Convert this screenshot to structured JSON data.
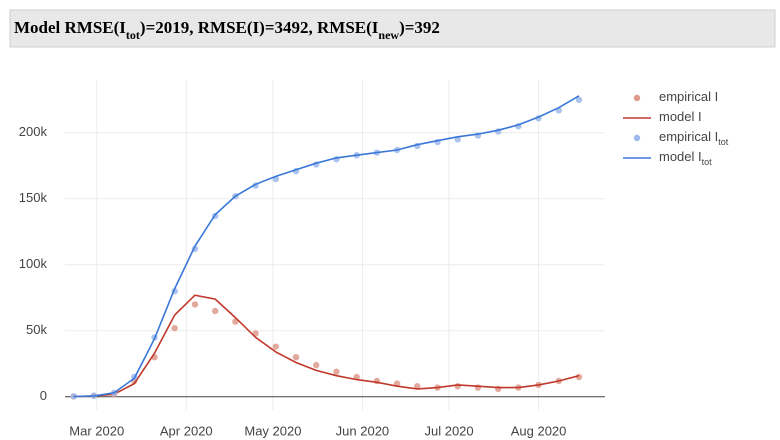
{
  "chart_data": {
    "type": "line",
    "title": [
      {
        "text": "Model RMSE(I"
      },
      {
        "text": "tot",
        "sub": true
      },
      {
        "text": ")=2019, RMSE(I)=3492, RMSE(I"
      },
      {
        "text": "new",
        "sub": true
      },
      {
        "text": ")=392"
      }
    ],
    "x": [
      "2020-02-22",
      "2020-02-29",
      "2020-03-07",
      "2020-03-14",
      "2020-03-21",
      "2020-03-28",
      "2020-04-04",
      "2020-04-11",
      "2020-04-18",
      "2020-04-25",
      "2020-05-02",
      "2020-05-09",
      "2020-05-16",
      "2020-05-23",
      "2020-05-30",
      "2020-06-06",
      "2020-06-13",
      "2020-06-20",
      "2020-06-27",
      "2020-07-04",
      "2020-07-11",
      "2020-07-18",
      "2020-07-25",
      "2020-08-01",
      "2020-08-08",
      "2020-08-15"
    ],
    "series": [
      {
        "name": "empirical I",
        "style": "markers",
        "color": "#df9a8c",
        "values": [
          300,
          800,
          2000,
          12000,
          30000,
          52000,
          70000,
          65000,
          57000,
          48000,
          38000,
          30000,
          24000,
          19000,
          15000,
          12000,
          10000,
          8000,
          7000,
          8000,
          7000,
          6000,
          7000,
          9000,
          12000,
          15000
        ]
      },
      {
        "name": "model I",
        "style": "line",
        "color": "#c0392b",
        "values": [
          200,
          600,
          2000,
          10000,
          33000,
          62000,
          77000,
          74000,
          60000,
          45000,
          34000,
          26000,
          20000,
          16000,
          13000,
          11000,
          8000,
          6000,
          7000,
          9000,
          8000,
          7000,
          7000,
          9000,
          12000,
          16000
        ]
      },
      {
        "name": "empirical I",
        "name_sub": "tot",
        "style": "markers",
        "color": "#9db8ec",
        "values": [
          300,
          800,
          3000,
          15000,
          45000,
          80000,
          112000,
          137000,
          152000,
          160000,
          165000,
          171000,
          176000,
          180000,
          183000,
          185000,
          187000,
          190000,
          193000,
          195000,
          198000,
          201000,
          205000,
          211000,
          217000,
          225000
        ]
      },
      {
        "name": "model I",
        "name_sub": "tot",
        "style": "line",
        "color": "#3a78d8",
        "values": [
          200,
          700,
          3000,
          14000,
          44000,
          82000,
          114000,
          138000,
          152000,
          161000,
          167000,
          172000,
          177000,
          181000,
          183000,
          185000,
          187000,
          191000,
          194000,
          197000,
          199000,
          202000,
          206000,
          212000,
          219000,
          228000
        ]
      }
    ],
    "xlim": [
      "2020-02-19",
      "2020-08-24"
    ],
    "xticks": [
      {
        "value": "2020-03-01",
        "label": "Mar 2020"
      },
      {
        "value": "2020-04-01",
        "label": "Apr 2020"
      },
      {
        "value": "2020-05-01",
        "label": "May 2020"
      },
      {
        "value": "2020-06-01",
        "label": "Jun 2020"
      },
      {
        "value": "2020-07-01",
        "label": "Jul 2020"
      },
      {
        "value": "2020-08-01",
        "label": "Aug 2020"
      }
    ],
    "ylim": [
      -10000,
      240000
    ],
    "yticks": [
      0,
      {
        "value": 50000,
        "label": "50k"
      },
      {
        "value": 100000,
        "label": "100k"
      },
      {
        "value": 150000,
        "label": "150k"
      },
      {
        "value": 200000,
        "label": "200k"
      }
    ],
    "grid": true
  }
}
